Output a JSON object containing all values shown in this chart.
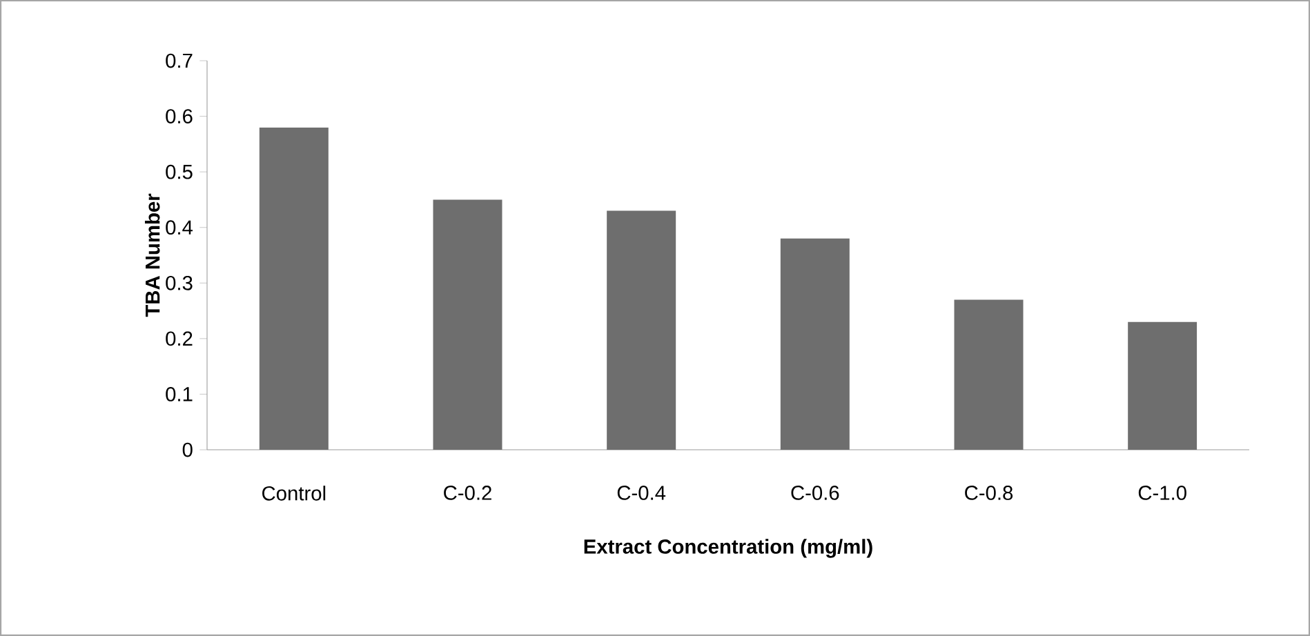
{
  "chart_data": {
    "type": "bar",
    "xlabel": "Extract Concentration (mg/ml)",
    "ylabel": "TBA Number",
    "categories": [
      "Control",
      "C-0.2",
      "C-0.4",
      "C-0.6",
      "C-0.8",
      "C-1.0"
    ],
    "values": [
      0.58,
      0.45,
      0.43,
      0.38,
      0.27,
      0.23
    ],
    "color": "#6e6e6e",
    "ylim": [
      0,
      0.7
    ],
    "yticks": [
      0,
      0.1,
      0.2,
      0.3,
      0.4,
      0.5,
      0.6,
      0.7
    ]
  }
}
